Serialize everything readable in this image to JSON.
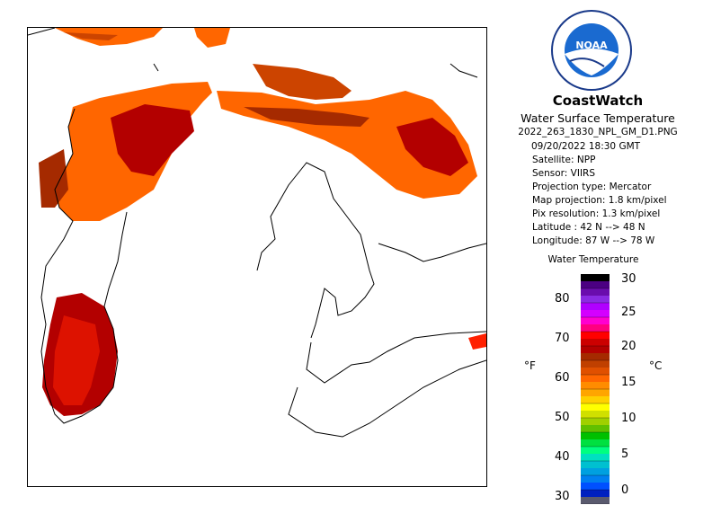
{
  "header": {
    "title": "CoastWatch",
    "subtitle": "Water Surface Temperature",
    "filename": "2022_263_1830_NPL_GM_D1.PNG"
  },
  "logo": {
    "text": "NOAA",
    "icon": "noaa-logo-icon"
  },
  "metadata": {
    "datetime": "09/20/2022   18:30 GMT",
    "satellite": "Satellite: NPP",
    "sensor": "Sensor: VIIRS",
    "projection_type": "Projection type:  Mercator",
    "map_projection": "Map projection: 1.8 km/pixel",
    "pix_resolution": "Pix resolution: 1.3 km/pixel",
    "latitude": "Latitude : 42 N --> 48 N",
    "longitude": "Longitude: 87 W --> 78 W"
  },
  "legend": {
    "title": "Water Temperature",
    "unit_f": "°F",
    "unit_c": "°C",
    "f_ticks": [
      "80",
      "70",
      "60",
      "50",
      "40",
      "30"
    ],
    "c_ticks": [
      "30",
      "25",
      "20",
      "15",
      "10",
      "5",
      "0"
    ],
    "colors": [
      "#000000",
      "#4b0082",
      "#6a0dad",
      "#8a2be2",
      "#b000ff",
      "#d400ff",
      "#ff00d0",
      "#ff0080",
      "#ff0000",
      "#cc0000",
      "#b30000",
      "#a52a00",
      "#c04000",
      "#e05000",
      "#ff6600",
      "#ff8c00",
      "#ffa500",
      "#ffd000",
      "#ffff00",
      "#d0e000",
      "#a0d000",
      "#60c000",
      "#00c000",
      "#00e040",
      "#00ff80",
      "#00e0c0",
      "#00c0d0",
      "#00a0e0",
      "#0080f0",
      "#0050ff",
      "#0020c0",
      "#5a5a6e"
    ]
  },
  "map": {
    "land_color": "#ffffff",
    "coastline_color": "#000000",
    "water_colors": [
      "#ff6600",
      "#cc4400",
      "#b30000",
      "#ff2000"
    ]
  }
}
